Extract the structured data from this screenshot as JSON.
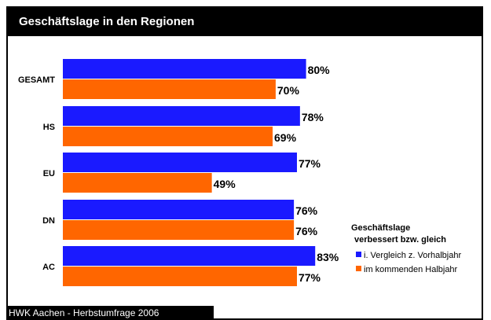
{
  "title": "Geschäftslage in den Regionen",
  "footer": "HWK Aachen - Herbstumfrage 2006",
  "colors": {
    "series1": "#1a1aff",
    "series2": "#ff6600"
  },
  "chart_data": {
    "type": "bar",
    "orientation": "horizontal",
    "categories": [
      "GESAMT",
      "HS",
      "EU",
      "DN",
      "AC"
    ],
    "series": [
      {
        "name": "i. Vergleich z. Vorhalbjahr",
        "values": [
          80,
          78,
          77,
          76,
          83
        ],
        "labels": [
          "80%",
          "78%",
          "77%",
          "76%",
          "83%"
        ]
      },
      {
        "name": "im kommenden Halbjahr",
        "values": [
          70,
          69,
          49,
          76,
          77
        ],
        "labels": [
          "70%",
          "69%",
          "49%",
          "76%",
          "77%"
        ]
      }
    ],
    "xlim": [
      0,
      100
    ],
    "unit": "%",
    "grid": false,
    "legend": {
      "title_line1": "Geschäftslage",
      "title_line2": "verbessert bzw. gleich",
      "position": "right"
    }
  }
}
